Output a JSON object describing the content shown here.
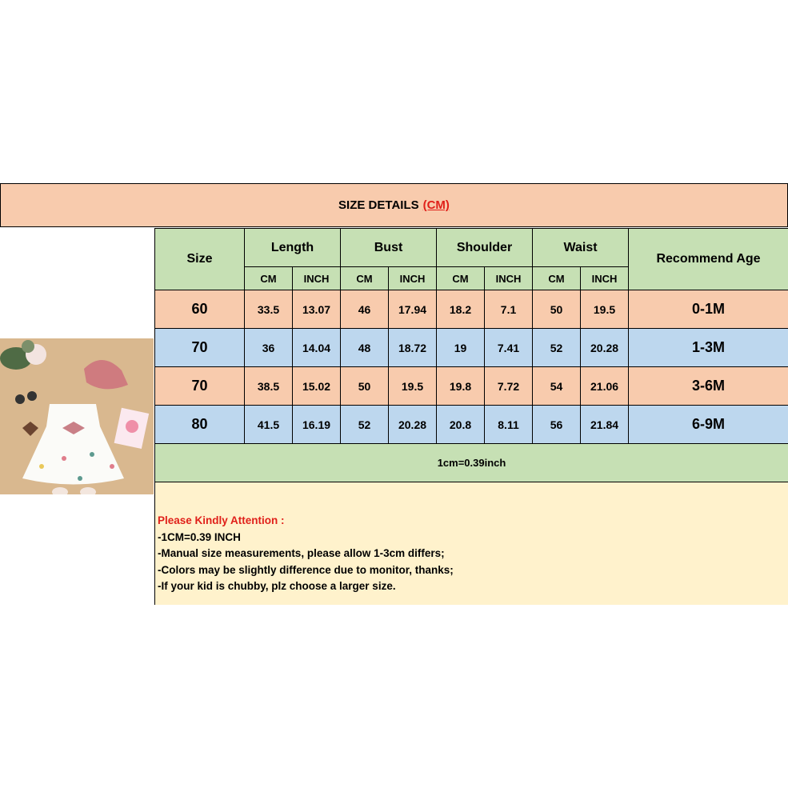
{
  "header": {
    "title": "SIZE DETAILS",
    "unit": "(CM)"
  },
  "columns": {
    "size": "Size",
    "groups": [
      "Length",
      "Bust",
      "Shoulder",
      "Waist"
    ],
    "cm": "CM",
    "inch": "INCH",
    "age": "Recommend Age"
  },
  "rows": [
    {
      "size": "60",
      "length_cm": "33.5",
      "length_in": "13.07",
      "bust_cm": "46",
      "bust_in": "17.94",
      "shoulder_cm": "18.2",
      "shoulder_in": "7.1",
      "waist_cm": "50",
      "waist_in": "19.5",
      "age": "0-1M"
    },
    {
      "size": "70",
      "length_cm": "36",
      "length_in": "14.04",
      "bust_cm": "48",
      "bust_in": "18.72",
      "shoulder_cm": "19",
      "shoulder_in": "7.41",
      "waist_cm": "52",
      "waist_in": "20.28",
      "age": "1-3M"
    },
    {
      "size": "70",
      "length_cm": "38.5",
      "length_in": "15.02",
      "bust_cm": "50",
      "bust_in": "19.5",
      "shoulder_cm": "19.8",
      "shoulder_in": "7.72",
      "waist_cm": "54",
      "waist_in": "21.06",
      "age": "3-6M"
    },
    {
      "size": "80",
      "length_cm": "41.5",
      "length_in": "16.19",
      "bust_cm": "52",
      "bust_in": "20.28",
      "shoulder_cm": "20.8",
      "shoulder_in": "8.11",
      "waist_cm": "56",
      "waist_in": "21.84",
      "age": "6-9M"
    }
  ],
  "conversion": "1cm=0.39inch",
  "notes": {
    "attention": "Please Kindly Attention :",
    "lines": [
      "-1CM=0.39 INCH",
      "-Manual size measurements, please allow 1-3cm differs;",
      "-Colors may be slightly difference due to monitor, thanks;",
      "-If your kid is chubby, plz choose a larger size."
    ]
  },
  "colors": {
    "peach": "#f8cbad",
    "green": "#c6e0b4",
    "blue": "#bdd7ee",
    "cream": "#fff2cc",
    "accent": "#e0201a"
  }
}
